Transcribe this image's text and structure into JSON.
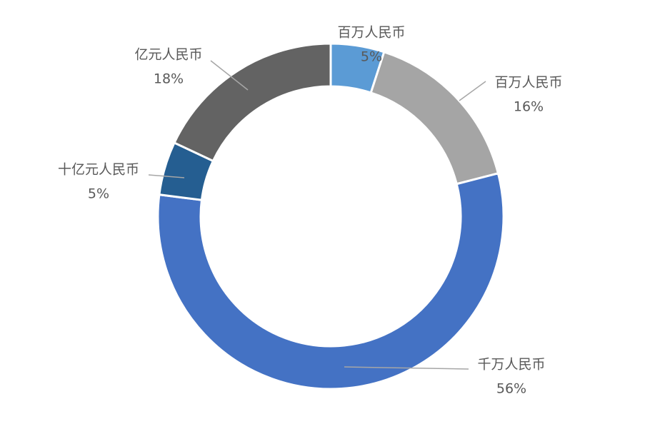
{
  "chart_data": {
    "type": "pie",
    "variant": "donut",
    "legend": "none",
    "slices": [
      {
        "label": "百万人民币",
        "value": 5,
        "value_label": "5%",
        "color": "#5B9BD5"
      },
      {
        "label": "百万人民币",
        "value": 16,
        "value_label": "16%",
        "color": "#A5A5A5"
      },
      {
        "label": "千万人民币",
        "value": 56,
        "value_label": "56%",
        "color": "#4472C4"
      },
      {
        "label": "十亿元人民币",
        "value": 5,
        "value_label": "5%",
        "color": "#255E91"
      },
      {
        "label": "亿元人民币",
        "value": 18,
        "value_label": "18%",
        "color": "#636363"
      }
    ]
  }
}
